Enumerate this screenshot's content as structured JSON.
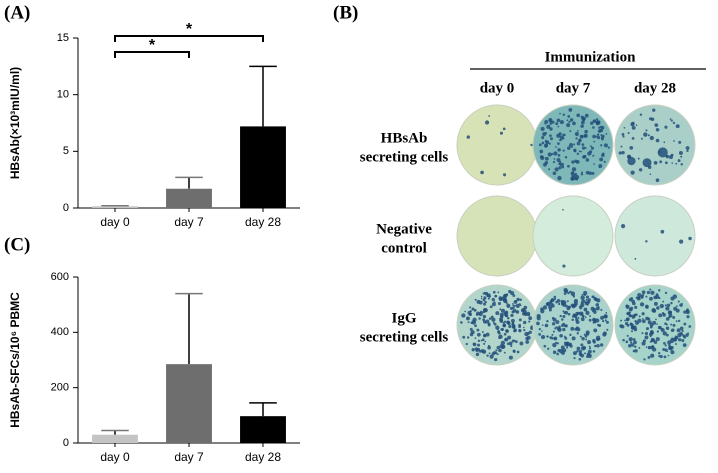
{
  "chart_data": [
    {
      "type": "bar",
      "panel": "(A)",
      "y_label": "HBsAb(×10³mIU/ml)",
      "categories": [
        "day 0",
        "day 7",
        "day 28"
      ],
      "values": [
        0.15,
        1.7,
        7.2
      ],
      "errors": [
        0.05,
        1.0,
        5.3
      ],
      "colors": [
        "#c4c4c4",
        "#6e6e6e",
        "#000000"
      ],
      "ylim": [
        0,
        15
      ],
      "yticks": [
        0,
        5,
        10,
        15
      ],
      "significance": [
        {
          "label": "*",
          "between": [
            "day 0",
            "day 28"
          ]
        },
        {
          "label": "*",
          "between": [
            "day 0",
            "day 7"
          ]
        }
      ]
    },
    {
      "type": "bar",
      "panel": "(C)",
      "y_label": "HBsAb-SFCs/10⁶ PBMC",
      "categories": [
        "day 0",
        "day 7",
        "day 28"
      ],
      "values": [
        30,
        285,
        97
      ],
      "errors": [
        15,
        255,
        48
      ],
      "colors": [
        "#c4c4c4",
        "#6e6e6e",
        "#000000"
      ],
      "ylim": [
        0,
        600
      ],
      "yticks": [
        0,
        200,
        400,
        600
      ]
    }
  ],
  "panel_b": {
    "panel": "(B)",
    "title": "Immunization",
    "columns": [
      "day 0",
      "day 7",
      "day 28"
    ],
    "rows": [
      [
        "HBsAb",
        "secreting cells"
      ],
      [
        "Negative",
        "control"
      ],
      [
        "IgG",
        "secreting cells"
      ]
    ]
  }
}
